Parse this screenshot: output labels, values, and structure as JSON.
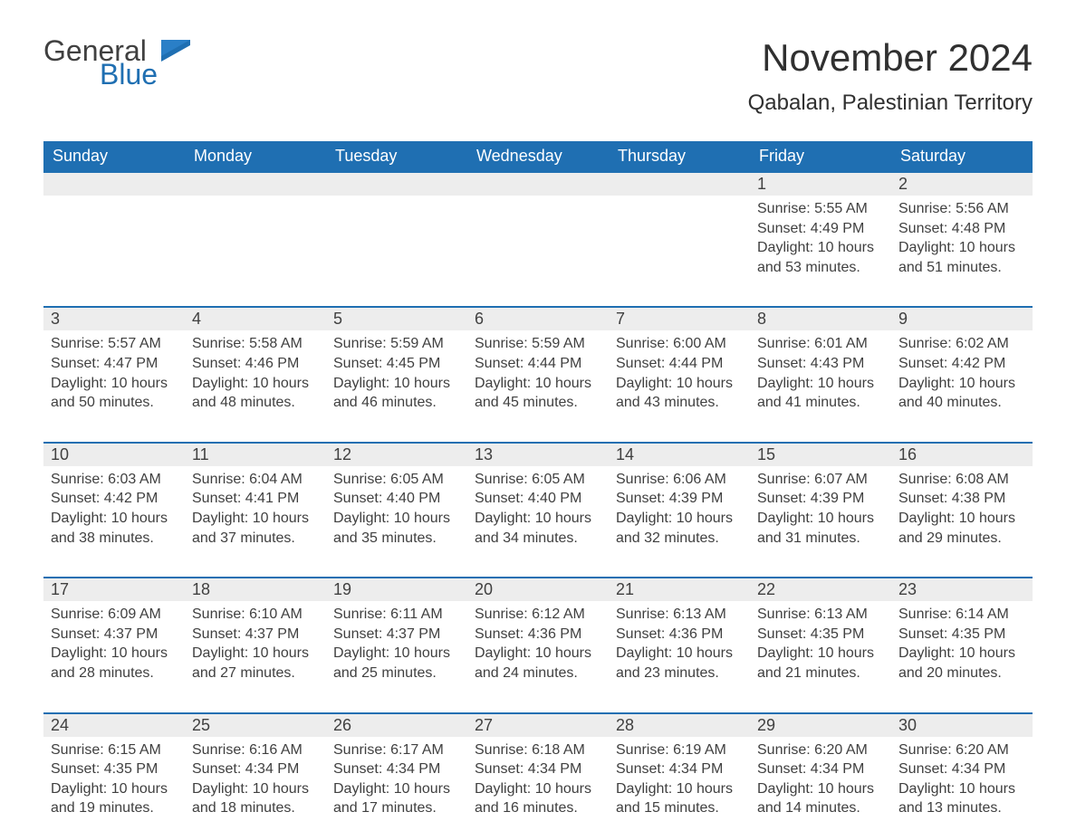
{
  "logo": {
    "general": "General",
    "blue": "Blue"
  },
  "title": "November 2024",
  "location": "Qabalan, Palestinian Territory",
  "colors": {
    "header_bg": "#1f6fb2",
    "header_text": "#ffffff",
    "daynum_bg": "#ededed",
    "daynum_border": "#1f6fb2",
    "page_bg": "#ffffff",
    "text": "#404040",
    "logo_blue": "#1f6fb2"
  },
  "fonts": {
    "title_size_pt": 32,
    "location_size_pt": 18,
    "dayheader_size_pt": 14,
    "daynum_size_pt": 14,
    "detail_size_pt": 12
  },
  "day_headers": [
    "Sunday",
    "Monday",
    "Tuesday",
    "Wednesday",
    "Thursday",
    "Friday",
    "Saturday"
  ],
  "weeks": [
    {
      "days": [
        null,
        null,
        null,
        null,
        null,
        {
          "num": "1",
          "sunrise": "Sunrise: 5:55 AM",
          "sunset": "Sunset: 4:49 PM",
          "daylight": "Daylight: 10 hours and 53 minutes."
        },
        {
          "num": "2",
          "sunrise": "Sunrise: 5:56 AM",
          "sunset": "Sunset: 4:48 PM",
          "daylight": "Daylight: 10 hours and 51 minutes."
        }
      ]
    },
    {
      "days": [
        {
          "num": "3",
          "sunrise": "Sunrise: 5:57 AM",
          "sunset": "Sunset: 4:47 PM",
          "daylight": "Daylight: 10 hours and 50 minutes."
        },
        {
          "num": "4",
          "sunrise": "Sunrise: 5:58 AM",
          "sunset": "Sunset: 4:46 PM",
          "daylight": "Daylight: 10 hours and 48 minutes."
        },
        {
          "num": "5",
          "sunrise": "Sunrise: 5:59 AM",
          "sunset": "Sunset: 4:45 PM",
          "daylight": "Daylight: 10 hours and 46 minutes."
        },
        {
          "num": "6",
          "sunrise": "Sunrise: 5:59 AM",
          "sunset": "Sunset: 4:44 PM",
          "daylight": "Daylight: 10 hours and 45 minutes."
        },
        {
          "num": "7",
          "sunrise": "Sunrise: 6:00 AM",
          "sunset": "Sunset: 4:44 PM",
          "daylight": "Daylight: 10 hours and 43 minutes."
        },
        {
          "num": "8",
          "sunrise": "Sunrise: 6:01 AM",
          "sunset": "Sunset: 4:43 PM",
          "daylight": "Daylight: 10 hours and 41 minutes."
        },
        {
          "num": "9",
          "sunrise": "Sunrise: 6:02 AM",
          "sunset": "Sunset: 4:42 PM",
          "daylight": "Daylight: 10 hours and 40 minutes."
        }
      ]
    },
    {
      "days": [
        {
          "num": "10",
          "sunrise": "Sunrise: 6:03 AM",
          "sunset": "Sunset: 4:42 PM",
          "daylight": "Daylight: 10 hours and 38 minutes."
        },
        {
          "num": "11",
          "sunrise": "Sunrise: 6:04 AM",
          "sunset": "Sunset: 4:41 PM",
          "daylight": "Daylight: 10 hours and 37 minutes."
        },
        {
          "num": "12",
          "sunrise": "Sunrise: 6:05 AM",
          "sunset": "Sunset: 4:40 PM",
          "daylight": "Daylight: 10 hours and 35 minutes."
        },
        {
          "num": "13",
          "sunrise": "Sunrise: 6:05 AM",
          "sunset": "Sunset: 4:40 PM",
          "daylight": "Daylight: 10 hours and 34 minutes."
        },
        {
          "num": "14",
          "sunrise": "Sunrise: 6:06 AM",
          "sunset": "Sunset: 4:39 PM",
          "daylight": "Daylight: 10 hours and 32 minutes."
        },
        {
          "num": "15",
          "sunrise": "Sunrise: 6:07 AM",
          "sunset": "Sunset: 4:39 PM",
          "daylight": "Daylight: 10 hours and 31 minutes."
        },
        {
          "num": "16",
          "sunrise": "Sunrise: 6:08 AM",
          "sunset": "Sunset: 4:38 PM",
          "daylight": "Daylight: 10 hours and 29 minutes."
        }
      ]
    },
    {
      "days": [
        {
          "num": "17",
          "sunrise": "Sunrise: 6:09 AM",
          "sunset": "Sunset: 4:37 PM",
          "daylight": "Daylight: 10 hours and 28 minutes."
        },
        {
          "num": "18",
          "sunrise": "Sunrise: 6:10 AM",
          "sunset": "Sunset: 4:37 PM",
          "daylight": "Daylight: 10 hours and 27 minutes."
        },
        {
          "num": "19",
          "sunrise": "Sunrise: 6:11 AM",
          "sunset": "Sunset: 4:37 PM",
          "daylight": "Daylight: 10 hours and 25 minutes."
        },
        {
          "num": "20",
          "sunrise": "Sunrise: 6:12 AM",
          "sunset": "Sunset: 4:36 PM",
          "daylight": "Daylight: 10 hours and 24 minutes."
        },
        {
          "num": "21",
          "sunrise": "Sunrise: 6:13 AM",
          "sunset": "Sunset: 4:36 PM",
          "daylight": "Daylight: 10 hours and 23 minutes."
        },
        {
          "num": "22",
          "sunrise": "Sunrise: 6:13 AM",
          "sunset": "Sunset: 4:35 PM",
          "daylight": "Daylight: 10 hours and 21 minutes."
        },
        {
          "num": "23",
          "sunrise": "Sunrise: 6:14 AM",
          "sunset": "Sunset: 4:35 PM",
          "daylight": "Daylight: 10 hours and 20 minutes."
        }
      ]
    },
    {
      "days": [
        {
          "num": "24",
          "sunrise": "Sunrise: 6:15 AM",
          "sunset": "Sunset: 4:35 PM",
          "daylight": "Daylight: 10 hours and 19 minutes."
        },
        {
          "num": "25",
          "sunrise": "Sunrise: 6:16 AM",
          "sunset": "Sunset: 4:34 PM",
          "daylight": "Daylight: 10 hours and 18 minutes."
        },
        {
          "num": "26",
          "sunrise": "Sunrise: 6:17 AM",
          "sunset": "Sunset: 4:34 PM",
          "daylight": "Daylight: 10 hours and 17 minutes."
        },
        {
          "num": "27",
          "sunrise": "Sunrise: 6:18 AM",
          "sunset": "Sunset: 4:34 PM",
          "daylight": "Daylight: 10 hours and 16 minutes."
        },
        {
          "num": "28",
          "sunrise": "Sunrise: 6:19 AM",
          "sunset": "Sunset: 4:34 PM",
          "daylight": "Daylight: 10 hours and 15 minutes."
        },
        {
          "num": "29",
          "sunrise": "Sunrise: 6:20 AM",
          "sunset": "Sunset: 4:34 PM",
          "daylight": "Daylight: 10 hours and 14 minutes."
        },
        {
          "num": "30",
          "sunrise": "Sunrise: 6:20 AM",
          "sunset": "Sunset: 4:34 PM",
          "daylight": "Daylight: 10 hours and 13 minutes."
        }
      ]
    }
  ]
}
